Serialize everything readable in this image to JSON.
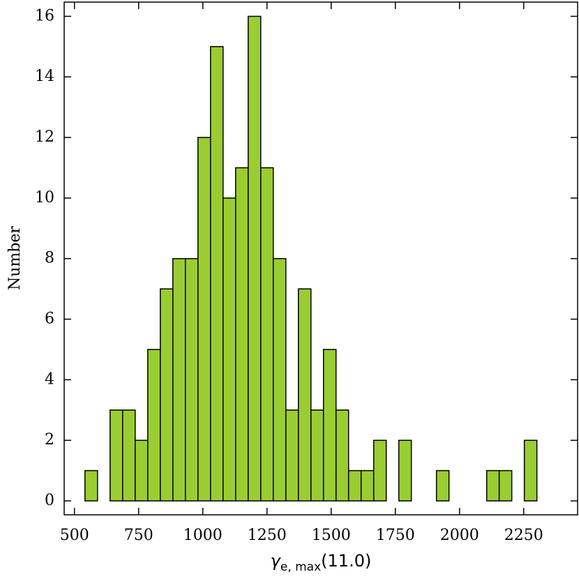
{
  "chart_data": {
    "type": "histogram",
    "x_label": {
      "symbol": "γ",
      "subscript": "e, max",
      "argument": "(11.0)"
    },
    "y_label": "Number",
    "bins": [
      541,
      589.9,
      638.8,
      687.7,
      736.6,
      785.5,
      834.4,
      883.3,
      932.2,
      981.1,
      1030,
      1078.9,
      1127.8,
      1176.7,
      1225.6,
      1274.5,
      1323.4,
      1372.3,
      1421.2,
      1470.1,
      1519,
      1567.9,
      1616.8,
      1665.7,
      1714.6,
      1763.5,
      1812.4,
      1861.3,
      1910.2,
      1959.1,
      2008,
      2056.9,
      2105.8,
      2154.7,
      2203.6,
      2252.5,
      2301.4
    ],
    "values": [
      1,
      0,
      3,
      3,
      2,
      5,
      7,
      8,
      8,
      12,
      15,
      10,
      11,
      16,
      11,
      8,
      3,
      7,
      3,
      5,
      3,
      1,
      1,
      2,
      0,
      2,
      0,
      0,
      1,
      0,
      0,
      0,
      1,
      1,
      0,
      2
    ],
    "color": "#9acd32",
    "xlim": [
      460,
      2460
    ],
    "xticks": [
      500,
      750,
      1000,
      1250,
      1500,
      1750,
      2000,
      2250
    ],
    "ylim": [
      -0.46,
      16.47
    ],
    "yticks": [
      0,
      2,
      4,
      6,
      8,
      10,
      12,
      14,
      16
    ]
  }
}
